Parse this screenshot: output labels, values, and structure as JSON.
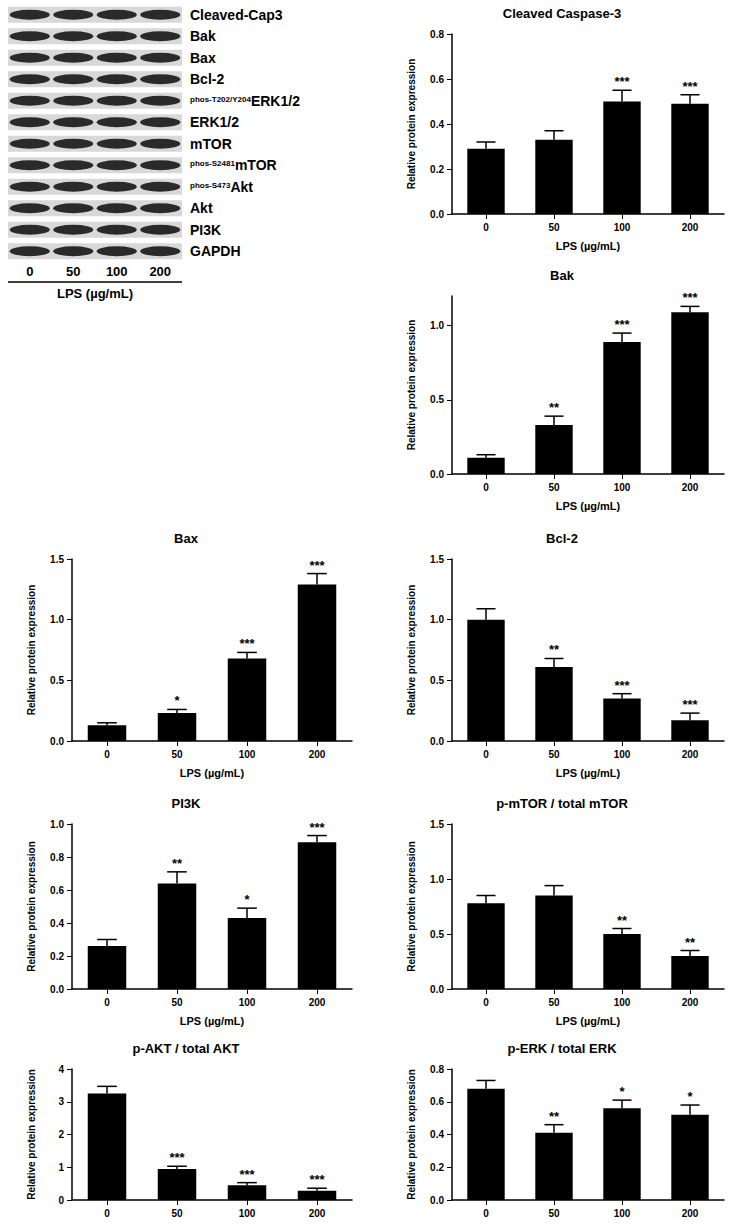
{
  "blot": {
    "rows": [
      {
        "label": "Cleaved-Cap3"
      },
      {
        "label": "Bak"
      },
      {
        "label": "Bax"
      },
      {
        "label": "Bcl-2"
      },
      {
        "prefix": "phos-T202/Y204",
        "label": "ERK1/2"
      },
      {
        "label": "ERK1/2"
      },
      {
        "label": "mTOR"
      },
      {
        "prefix": "phos-S2481",
        "label": "mTOR"
      },
      {
        "prefix": "phos-S473",
        "label": "Akt"
      },
      {
        "label": "Akt"
      },
      {
        "label": "PI3K"
      },
      {
        "label": "GAPDH"
      }
    ],
    "lanes": [
      "0",
      "50",
      "100",
      "200"
    ],
    "caption": "LPS (µg/mL)"
  },
  "chart_data": [
    {
      "type": "bar",
      "title": "Cleaved Caspase-3",
      "y_label": "Relative protein expression",
      "x_label": "LPS (µg/mL)",
      "categories": [
        "0",
        "50",
        "100",
        "200"
      ],
      "values": [
        0.29,
        0.33,
        0.5,
        0.49
      ],
      "errors": [
        0.03,
        0.04,
        0.05,
        0.04
      ],
      "annotations": [
        null,
        null,
        "***",
        "***"
      ],
      "color": "#000000",
      "ylim": [
        0,
        0.8
      ],
      "yticks": [
        {
          "value": 0,
          "label": "0.0"
        },
        {
          "value": 0.2,
          "label": "0.2"
        },
        {
          "value": 0.4,
          "label": "0.4"
        },
        {
          "value": 0.6,
          "label": "0.6"
        },
        {
          "value": 0.8,
          "label": "0.8"
        }
      ]
    },
    {
      "type": "bar",
      "title": "Bak",
      "y_label": "Relative protein expression",
      "x_label": "LPS (µg/mL)",
      "categories": [
        "0",
        "50",
        "100",
        "200"
      ],
      "values": [
        0.11,
        0.33,
        0.89,
        1.09
      ],
      "errors": [
        0.02,
        0.06,
        0.06,
        0.04
      ],
      "annotations": [
        null,
        "**",
        "***",
        "***"
      ],
      "color": "#000000",
      "ylim": [
        0,
        1.2
      ],
      "yticks": [
        {
          "value": 0,
          "label": "0.0"
        },
        {
          "value": 0.5,
          "label": "0.5"
        },
        {
          "value": 1,
          "label": "1.0"
        }
      ]
    },
    {
      "type": "bar",
      "title": "Bax",
      "y_label": "Relative protein expression",
      "x_label": "LPS (µg/mL)",
      "categories": [
        "0",
        "50",
        "100",
        "200"
      ],
      "values": [
        0.13,
        0.23,
        0.68,
        1.29
      ],
      "errors": [
        0.02,
        0.03,
        0.05,
        0.09
      ],
      "annotations": [
        null,
        "*",
        "***",
        "***"
      ],
      "color": "#000000",
      "ylim": [
        0,
        1.5
      ],
      "yticks": [
        {
          "value": 0,
          "label": "0.0"
        },
        {
          "value": 0.5,
          "label": "0.5"
        },
        {
          "value": 1,
          "label": "1.0"
        },
        {
          "value": 1.5,
          "label": "1.5"
        }
      ]
    },
    {
      "type": "bar",
      "title": "Bcl-2",
      "y_label": "Relative protein expression",
      "x_label": "LPS (µg/mL)",
      "categories": [
        "0",
        "50",
        "100",
        "200"
      ],
      "values": [
        1.0,
        0.61,
        0.35,
        0.17
      ],
      "errors": [
        0.09,
        0.07,
        0.04,
        0.06
      ],
      "annotations": [
        null,
        "**",
        "***",
        "***"
      ],
      "color": "#000000",
      "ylim": [
        0,
        1.5
      ],
      "yticks": [
        {
          "value": 0,
          "label": "0.0"
        },
        {
          "value": 0.5,
          "label": "0.5"
        },
        {
          "value": 1,
          "label": "1.0"
        },
        {
          "value": 1.5,
          "label": "1.5"
        }
      ]
    },
    {
      "type": "bar",
      "title": "PI3K",
      "y_label": "Relative protein expression",
      "x_label": "LPS (µg/mL)",
      "categories": [
        "0",
        "50",
        "100",
        "200"
      ],
      "values": [
        0.26,
        0.64,
        0.43,
        0.89
      ],
      "errors": [
        0.04,
        0.07,
        0.06,
        0.04
      ],
      "annotations": [
        null,
        "**",
        "*",
        "***"
      ],
      "color": "#000000",
      "ylim": [
        0,
        1.0
      ],
      "yticks": [
        {
          "value": 0,
          "label": "0.0"
        },
        {
          "value": 0.2,
          "label": "0.2"
        },
        {
          "value": 0.4,
          "label": "0.4"
        },
        {
          "value": 0.6,
          "label": "0.6"
        },
        {
          "value": 0.8,
          "label": "0.8"
        },
        {
          "value": 1,
          "label": "1.0"
        }
      ]
    },
    {
      "type": "bar",
      "title": "p-mTOR / total mTOR",
      "y_label": "Relative protein expression",
      "x_label": "LPS (µg/mL)",
      "categories": [
        "0",
        "50",
        "100",
        "200"
      ],
      "values": [
        0.78,
        0.85,
        0.5,
        0.3
      ],
      "errors": [
        0.07,
        0.09,
        0.05,
        0.05
      ],
      "annotations": [
        null,
        null,
        "**",
        "**"
      ],
      "color": "#000000",
      "ylim": [
        0,
        1.5
      ],
      "yticks": [
        {
          "value": 0,
          "label": "0.0"
        },
        {
          "value": 0.5,
          "label": "0.5"
        },
        {
          "value": 1,
          "label": "1.0"
        },
        {
          "value": 1.5,
          "label": "1.5"
        }
      ]
    },
    {
      "type": "bar",
      "title": "p-AKT / total AKT",
      "y_label": "Relative protein expression",
      "categories": [
        "0",
        "50",
        "100",
        "200"
      ],
      "values": [
        3.25,
        0.95,
        0.45,
        0.28
      ],
      "errors": [
        0.22,
        0.08,
        0.08,
        0.08
      ],
      "annotations": [
        null,
        "***",
        "***",
        "***"
      ],
      "color": "#000000",
      "ylim": [
        0,
        4
      ],
      "yticks": [
        0,
        1,
        2,
        3,
        4
      ]
    },
    {
      "type": "bar",
      "title": "p-ERK / total ERK",
      "y_label": "Relative protein expression",
      "categories": [
        "0",
        "50",
        "100",
        "200"
      ],
      "values": [
        0.68,
        0.41,
        0.56,
        0.52
      ],
      "errors": [
        0.05,
        0.05,
        0.05,
        0.06
      ],
      "annotations": [
        null,
        "**",
        "*",
        "*"
      ],
      "color": "#000000",
      "ylim": [
        0,
        0.8
      ],
      "yticks": [
        {
          "value": 0,
          "label": "0.0"
        },
        {
          "value": 0.2,
          "label": "0.2"
        },
        {
          "value": 0.4,
          "label": "0.4"
        },
        {
          "value": 0.6,
          "label": "0.6"
        },
        {
          "value": 0.8,
          "label": "0.8"
        }
      ]
    }
  ]
}
